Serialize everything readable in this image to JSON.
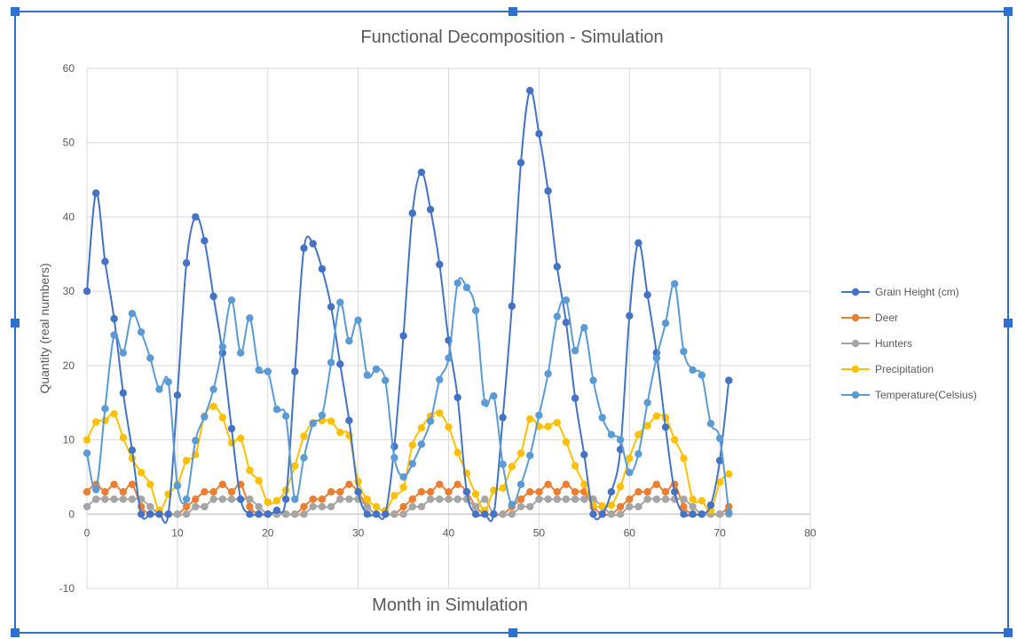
{
  "chart_data": {
    "type": "line",
    "title": "Functional Decomposition - Simulation",
    "xlabel": "Month in Simulation",
    "ylabel": "Quantity (real numbers)",
    "xlim": [
      0,
      80
    ],
    "ylim": [
      -10,
      60
    ],
    "xticks": [
      0,
      10,
      20,
      30,
      40,
      50,
      60,
      70,
      80
    ],
    "yticks": [
      -10,
      0,
      10,
      20,
      30,
      40,
      50,
      60
    ],
    "grid": true,
    "legend_position": "right",
    "x": [
      0,
      1,
      2,
      3,
      4,
      5,
      6,
      7,
      8,
      9,
      10,
      11,
      12,
      13,
      14,
      15,
      16,
      17,
      18,
      19,
      20,
      21,
      22,
      23,
      24,
      25,
      26,
      27,
      28,
      29,
      30,
      31,
      32,
      33,
      34,
      35,
      36,
      37,
      38,
      39,
      40,
      41,
      42,
      43,
      44,
      45,
      46,
      47,
      48,
      49,
      50,
      51,
      52,
      53,
      54,
      55,
      56,
      57,
      58,
      59,
      60,
      61,
      62,
      63,
      64,
      65,
      66,
      67,
      68,
      69,
      70,
      71
    ],
    "series": [
      {
        "name": "Grain Height (cm)",
        "color": "#4472c4",
        "values": [
          30,
          43.2,
          34,
          26.3,
          16.3,
          8.6,
          0,
          0,
          0,
          0,
          16,
          33.8,
          40,
          36.8,
          29.3,
          21.7,
          11.5,
          2,
          0,
          0,
          0,
          0.5,
          2,
          19.2,
          35.8,
          36.4,
          33,
          27.9,
          20.2,
          12.6,
          3,
          0,
          0,
          0,
          9.1,
          24,
          40.5,
          46,
          41,
          33.6,
          23.4,
          15.7,
          3,
          0,
          0,
          0,
          13,
          28,
          47.3,
          57,
          51.2,
          43.5,
          33.3,
          25.8,
          15.6,
          8,
          0,
          0,
          3,
          8.7,
          26.7,
          36.5,
          29.5,
          21.7,
          11.7,
          3,
          0,
          0,
          0,
          1.2,
          7.2,
          18
        ]
      },
      {
        "name": "Deer",
        "color": "#ed7d31",
        "values": [
          3,
          4,
          3,
          4,
          3,
          4,
          1,
          0,
          0,
          0,
          0,
          1,
          2,
          3,
          3,
          4,
          3,
          4,
          1,
          0,
          0,
          0,
          0,
          0,
          1,
          2,
          2,
          3,
          3,
          4,
          3,
          1,
          0,
          0,
          0,
          1,
          2,
          3,
          3,
          4,
          3,
          4,
          3,
          1,
          0,
          0,
          0,
          1,
          2,
          3,
          3,
          4,
          3,
          4,
          3,
          3,
          1,
          0,
          0,
          1,
          2,
          3,
          3,
          4,
          3,
          4,
          1,
          0,
          0,
          0,
          0,
          1
        ]
      },
      {
        "name": "Hunters",
        "color": "#a5a5a5",
        "values": [
          1,
          2,
          2,
          2,
          2,
          2,
          2,
          1,
          0,
          0,
          0,
          0,
          1,
          1,
          2,
          2,
          2,
          2,
          2,
          1,
          0,
          0,
          0,
          0,
          0,
          1,
          1,
          1,
          2,
          2,
          2,
          1,
          0,
          0,
          0,
          0,
          1,
          1,
          2,
          2,
          2,
          2,
          2,
          1,
          2,
          0,
          0,
          0,
          1,
          1,
          2,
          2,
          2,
          2,
          2,
          2,
          2,
          1,
          0,
          0,
          1,
          1,
          2,
          2,
          2,
          2,
          2,
          1,
          0,
          0,
          0,
          0
        ]
      },
      {
        "name": "Precipitation",
        "color": "#ffc000",
        "values": [
          10,
          12.4,
          12.6,
          13.5,
          10.3,
          7.5,
          5.6,
          4,
          0.5,
          2.7,
          4,
          7.2,
          8,
          13.2,
          14.5,
          13,
          9.6,
          10.2,
          5.9,
          4.5,
          1.6,
          1.8,
          3.2,
          6.5,
          10.5,
          12.3,
          12.6,
          12.5,
          11,
          10.6,
          4.4,
          2,
          1,
          0.5,
          2.5,
          3.6,
          9.3,
          11.6,
          13.2,
          13.6,
          11.7,
          8.3,
          5.5,
          2.7,
          0.5,
          3.2,
          3.5,
          6.4,
          8.2,
          12.8,
          11.8,
          11.8,
          12.3,
          9.7,
          6.5,
          4,
          1.2,
          1.1,
          1.2,
          3.7,
          7.5,
          10.7,
          11.9,
          13.2,
          13,
          10,
          7.5,
          2,
          1.8,
          0.5,
          4.3,
          5.4
        ]
      },
      {
        "name": "Temperature(Celsius)",
        "color": "#5b9bd5",
        "values": [
          8.2,
          3.3,
          14.2,
          24.1,
          21.7,
          27,
          24.5,
          21,
          16.8,
          17.8,
          3.8,
          2,
          9.9,
          13.1,
          16.8,
          22.5,
          28.8,
          21.7,
          26.4,
          19.4,
          19.2,
          14.1,
          13.2,
          2,
          7.6,
          12.2,
          13.3,
          20.4,
          28.5,
          23.3,
          26.1,
          18.7,
          19.5,
          18,
          7.6,
          5,
          6.8,
          9.4,
          12.5,
          18.1,
          21,
          31.1,
          30.5,
          27.4,
          15,
          15.9,
          6.7,
          1.3,
          4,
          7.9,
          13.3,
          18.9,
          26.6,
          28.8,
          22,
          25.1,
          18,
          13,
          10.7,
          10,
          5.6,
          8.1,
          15,
          21,
          25.7,
          31,
          21.9,
          19.4,
          18.7,
          12.2,
          10.2,
          0.2
        ]
      }
    ]
  }
}
